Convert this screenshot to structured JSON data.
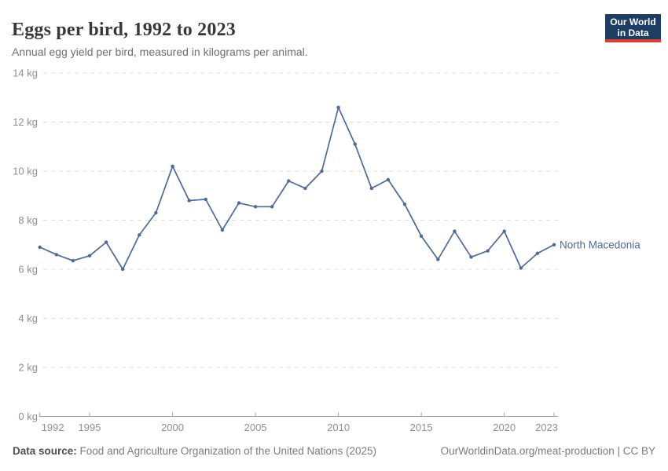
{
  "header": {
    "title": "Eggs per bird, 1992 to 2023",
    "subtitle": "Annual egg yield per bird, measured in kilograms per animal.",
    "logo_line1": "Our World",
    "logo_line2": "in Data",
    "logo_bg_color": "#1d3d63",
    "logo_accent_color": "#dc3e32"
  },
  "chart_data": {
    "type": "line",
    "title": "Eggs per bird, 1992 to 2023",
    "xlabel": "",
    "ylabel": "kg",
    "xlim": [
      1992,
      2023
    ],
    "ylim": [
      0,
      14
    ],
    "grid": "horizontal-dashed",
    "legend_position": "end-of-line",
    "xticks": [
      {
        "value": 1992,
        "label": "1992"
      },
      {
        "value": 1995,
        "label": "1995"
      },
      {
        "value": 2000,
        "label": "2000"
      },
      {
        "value": 2005,
        "label": "2005"
      },
      {
        "value": 2010,
        "label": "2010"
      },
      {
        "value": 2015,
        "label": "2015"
      },
      {
        "value": 2020,
        "label": "2020"
      },
      {
        "value": 2023,
        "label": "2023"
      }
    ],
    "yticks": [
      {
        "value": 0,
        "label": "0 kg"
      },
      {
        "value": 2,
        "label": "2 kg"
      },
      {
        "value": 4,
        "label": "4 kg"
      },
      {
        "value": 6,
        "label": "6 kg"
      },
      {
        "value": 8,
        "label": "8 kg"
      },
      {
        "value": 10,
        "label": "10 kg"
      },
      {
        "value": 12,
        "label": "12 kg"
      },
      {
        "value": 14,
        "label": "14 kg"
      }
    ],
    "series": [
      {
        "name": "North Macedonia",
        "color": "#4C6A9C",
        "x": [
          1992,
          1993,
          1994,
          1995,
          1996,
          1997,
          1998,
          1999,
          2000,
          2001,
          2002,
          2003,
          2004,
          2005,
          2006,
          2007,
          2008,
          2009,
          2010,
          2011,
          2012,
          2013,
          2014,
          2015,
          2016,
          2017,
          2018,
          2019,
          2020,
          2021,
          2022,
          2023
        ],
        "values": [
          6.9,
          6.6,
          6.35,
          6.55,
          7.1,
          6.0,
          7.4,
          8.3,
          10.2,
          8.8,
          8.85,
          7.6,
          8.7,
          8.55,
          8.55,
          9.6,
          9.3,
          10.0,
          12.6,
          11.1,
          9.3,
          9.65,
          8.65,
          7.35,
          6.4,
          7.55,
          6.5,
          6.75,
          7.55,
          6.05,
          6.65,
          7.0
        ]
      }
    ]
  },
  "footer": {
    "datasource_label": "Data source:",
    "datasource_text": "Food and Agriculture Organization of the United Nations (2025)",
    "link_text": "OurWorldinData.org/meat-production | CC BY"
  }
}
